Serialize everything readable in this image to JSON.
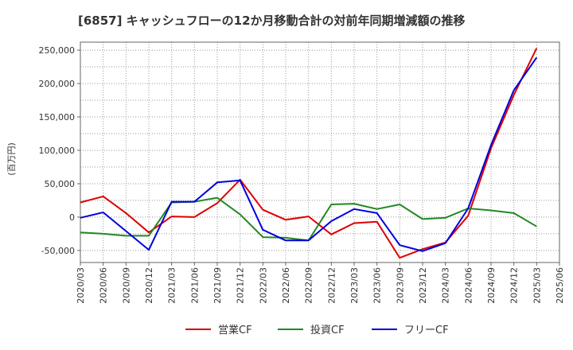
{
  "chart_data": {
    "type": "line",
    "title": "[6857]  キャッシュフローの12か月移動合計の対前年同期増減額の推移",
    "xlabel": "",
    "ylabel": "(百万円)",
    "categories": [
      "2020/03",
      "2020/06",
      "2020/09",
      "2020/12",
      "2021/03",
      "2021/06",
      "2021/09",
      "2021/12",
      "2022/03",
      "2022/06",
      "2022/09",
      "2022/12",
      "2023/03",
      "2023/06",
      "2023/09",
      "2023/12",
      "2024/03",
      "2024/06",
      "2024/09",
      "2024/12",
      "2025/03",
      "2025/06"
    ],
    "yticks": [
      -50000,
      0,
      50000,
      100000,
      150000,
      200000,
      250000
    ],
    "ytick_labels": [
      "-50,000",
      "0",
      "50,000",
      "100,000",
      "150,000",
      "200,000",
      "250,000"
    ],
    "ylim": [
      -68000,
      262000
    ],
    "grid": true,
    "legend_position": "bottom",
    "series": [
      {
        "name": "営業CF",
        "color": "#dd0000",
        "values": [
          22000,
          31000,
          6000,
          -23000,
          1000,
          0,
          21000,
          56000,
          11000,
          -4000,
          1000,
          -26000,
          -9000,
          -7000,
          -61000,
          -48000,
          -38000,
          2000,
          103000,
          183000,
          253000,
          null
        ]
      },
      {
        "name": "投資CF",
        "color": "#228822",
        "values": [
          -23000,
          -25000,
          -28000,
          -28000,
          22000,
          23000,
          29000,
          4000,
          -30000,
          -31000,
          -35000,
          19000,
          20000,
          12000,
          19000,
          -3000,
          -1000,
          13000,
          10000,
          6000,
          -14000,
          null
        ]
      },
      {
        "name": "フリーCF",
        "color": "#0000dd",
        "values": [
          -1000,
          7000,
          -21000,
          -49000,
          23000,
          23000,
          52000,
          55000,
          -19000,
          -35000,
          -35000,
          -6000,
          12000,
          6000,
          -42000,
          -51000,
          -39000,
          13000,
          108000,
          190000,
          239000,
          null
        ]
      }
    ]
  }
}
